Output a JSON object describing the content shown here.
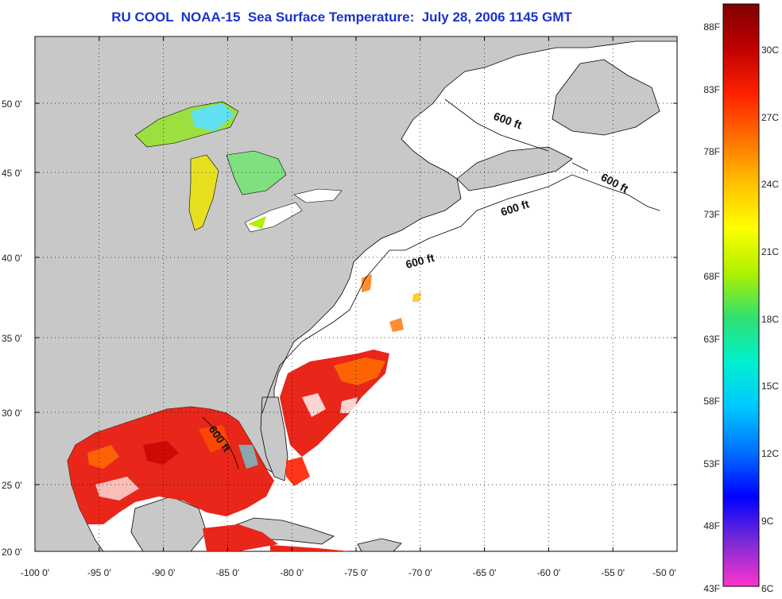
{
  "title": "RU COOL  NOAA-15  Sea Surface Temperature:  July 28, 2006 1145 GMT",
  "map": {
    "lon_ticks": [
      "-100 0'",
      "-95 0'",
      "-90 0'",
      "-85 0'",
      "-80 0'",
      "-75 0'",
      "-70 0'",
      "-65 0'",
      "-60 0'",
      "-55 0'",
      "-50 0'"
    ],
    "lat_ticks": [
      "50 0'",
      "45 0'",
      "40 0'",
      "35 0'",
      "30 0'",
      "25 0'",
      "20 0'"
    ],
    "contour_labels": [
      "600 ft",
      "600 ft",
      "600 ft",
      "600 ft",
      "600 ft"
    ],
    "colors": {
      "land": "#c8c8c8",
      "ocean_nodata": "#ffffff",
      "warm_sst": "#e8261a",
      "title": "#1a33cc"
    }
  },
  "colorbar": {
    "fahrenheit_labels": [
      "88F",
      "83F",
      "78F",
      "73F",
      "68F",
      "63F",
      "58F",
      "53F",
      "48F",
      "43F"
    ],
    "celsius_labels": [
      "30C",
      "27C",
      "24C",
      "21C",
      "18C",
      "15C",
      "12C",
      "9C",
      "6C"
    ],
    "gradient": [
      "#ff33cc",
      "#7a2bd6",
      "#0000ff",
      "#0070ff",
      "#00c8ff",
      "#00f0d0",
      "#30e070",
      "#b0f000",
      "#ffff00",
      "#ffc000",
      "#ff7000",
      "#ff2000",
      "#c00000",
      "#800000"
    ]
  }
}
